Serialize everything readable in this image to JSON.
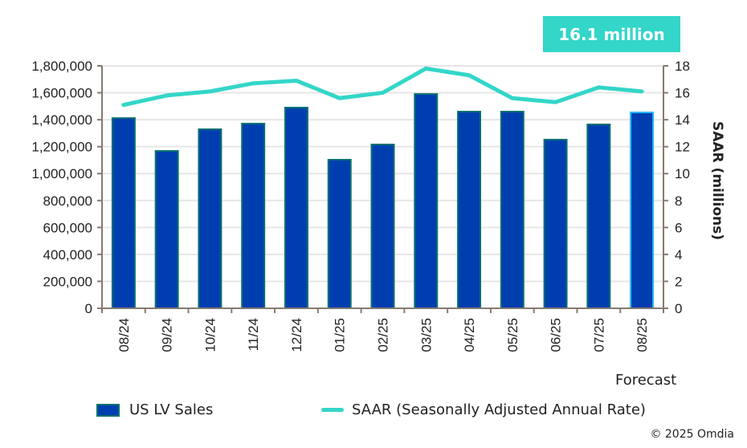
{
  "badge": {
    "text": "16.1 million",
    "color": "#33d6c8"
  },
  "forecast_label": "Forecast",
  "copyright": "© 2025 Omdia",
  "legend": [
    {
      "label": "US LV Sales",
      "type": "bar"
    },
    {
      "label": "SAAR (Seasonally Adjusted Annual Rate)",
      "type": "line"
    }
  ],
  "colors": {
    "bar_fill": "#003eb0",
    "bar_stroke": "#0a7070",
    "forecast_bar_stroke": "#29b6f6",
    "line": "#33d6c8",
    "grid": "#e6e6e6",
    "axis": "#857b72"
  },
  "chart_data": {
    "type": "bar",
    "title": "",
    "categories": [
      "08/24",
      "09/24",
      "10/24",
      "11/24",
      "12/24",
      "01/25",
      "02/25",
      "03/25",
      "04/25",
      "05/25",
      "06/25",
      "07/25",
      "08/25"
    ],
    "forecast_categories": [
      "08/25"
    ],
    "series": [
      {
        "name": "US LV Sales",
        "type": "bar",
        "axis": "left",
        "values": [
          1412000,
          1168000,
          1329000,
          1371000,
          1490000,
          1103000,
          1216000,
          1591000,
          1460000,
          1460000,
          1252000,
          1365000,
          1454000
        ]
      },
      {
        "name": "SAAR (Seasonally Adjusted Annual Rate)",
        "type": "line",
        "axis": "right",
        "values": [
          15.1,
          15.8,
          16.1,
          16.7,
          16.9,
          15.6,
          16.0,
          17.8,
          17.3,
          15.6,
          15.3,
          16.4,
          16.1
        ]
      }
    ],
    "left_axis": {
      "label": "",
      "range": [
        0,
        1800000
      ],
      "ticks": [
        "0",
        "200,000",
        "400,000",
        "600,000",
        "800,000",
        "1,000,000",
        "1,200,000",
        "1,400,000",
        "1,600,000",
        "1,800,000"
      ],
      "tick_values": [
        0,
        200000,
        400000,
        600000,
        800000,
        1000000,
        1200000,
        1400000,
        1600000,
        1800000
      ]
    },
    "right_axis": {
      "label": "SAAR (millions)",
      "range": [
        0,
        18
      ],
      "ticks": [
        "0",
        "2",
        "4",
        "6",
        "8",
        "10",
        "12",
        "14",
        "16",
        "18"
      ],
      "tick_values": [
        0,
        2,
        4,
        6,
        8,
        10,
        12,
        14,
        16,
        18
      ]
    },
    "xlabel": "",
    "grid": true,
    "legend_position": "bottom"
  }
}
